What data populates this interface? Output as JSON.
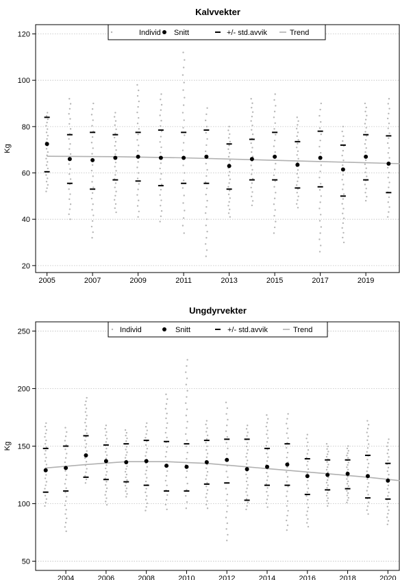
{
  "chart_data": [
    {
      "type": "scatter",
      "title": "Kalvvekter",
      "xlabel": "",
      "ylabel": "Kg",
      "xlim": [
        2004.5,
        2020.5
      ],
      "ylim": [
        17,
        124
      ],
      "xticks": [
        "2005",
        "2007",
        "2009",
        "2011",
        "2013",
        "2015",
        "2017",
        "2019"
      ],
      "yticks": [
        "20",
        "40",
        "60",
        "80",
        "100",
        "120"
      ],
      "legend": [
        "Individ",
        "Snitt",
        "+/- std.avvik",
        "Trend"
      ],
      "legend_position": "top-center",
      "grid": "horizontal dotted",
      "years": [
        2005,
        2006,
        2007,
        2008,
        2009,
        2010,
        2011,
        2012,
        2013,
        2014,
        2015,
        2016,
        2017,
        2018,
        2019,
        2020
      ],
      "mean": [
        72.5,
        66,
        65.5,
        66.5,
        67,
        66.5,
        66.5,
        67,
        63,
        66,
        67,
        63.5,
        66.5,
        61.5,
        67,
        64
      ],
      "upper": [
        84,
        76.5,
        77.5,
        76.5,
        77.5,
        78.5,
        77.5,
        78.5,
        72.5,
        74.5,
        77.5,
        73.5,
        78,
        72,
        76.5,
        76
      ],
      "lower": [
        60.5,
        55.5,
        53,
        57,
        56.5,
        54.5,
        55.5,
        55.5,
        53,
        57,
        57,
        53.5,
        54,
        50,
        57,
        51.5
      ],
      "trend": [
        [
          2005,
          67.2
        ],
        [
          2008,
          67
        ],
        [
          2011,
          66.5
        ],
        [
          2014,
          65.7
        ],
        [
          2017,
          64.9
        ],
        [
          2020.5,
          64
        ]
      ],
      "individual_range": [
        [
          52,
          86
        ],
        [
          40,
          92
        ],
        [
          32,
          90
        ],
        [
          43,
          86
        ],
        [
          41,
          98
        ],
        [
          39,
          94
        ],
        [
          34,
          112
        ],
        [
          24,
          88
        ],
        [
          41,
          80
        ],
        [
          46,
          92
        ],
        [
          34,
          94
        ],
        [
          45,
          84
        ],
        [
          26,
          90
        ],
        [
          30,
          80
        ],
        [
          48,
          90
        ],
        [
          41,
          92
        ]
      ]
    },
    {
      "type": "scatter",
      "title": "Ungdyrvekter",
      "xlabel": "",
      "ylabel": "Kg",
      "xlim": [
        2002.5,
        2020.6
      ],
      "ylim": [
        42,
        258
      ],
      "xticks": [
        "2004",
        "2006",
        "2008",
        "2010",
        "2012",
        "2014",
        "2016",
        "2018",
        "2020"
      ],
      "yticks": [
        "50",
        "100",
        "150",
        "200",
        "250"
      ],
      "legend": [
        "Individ",
        "Snitt",
        "+/- std.avvik",
        "Trend"
      ],
      "legend_position": "top-center",
      "grid": "horizontal dotted",
      "years": [
        2003,
        2004,
        2005,
        2006,
        2007,
        2008,
        2009,
        2010,
        2011,
        2012,
        2013,
        2014,
        2015,
        2016,
        2017,
        2018,
        2019,
        2020
      ],
      "mean": [
        129,
        131,
        142,
        137,
        136,
        137,
        133,
        132,
        136,
        138,
        130,
        132,
        134,
        124,
        125,
        126,
        124,
        120
      ],
      "upper": [
        148,
        150,
        159,
        151,
        152,
        155,
        154,
        152,
        155,
        156,
        156,
        148,
        152,
        139,
        138,
        138,
        142,
        135
      ],
      "lower": [
        110,
        111,
        123,
        121,
        119,
        116,
        111,
        111,
        117,
        118,
        103,
        116,
        116,
        108,
        112,
        113,
        105,
        104
      ],
      "trend": [
        [
          2003,
          131
        ],
        [
          2005,
          134
        ],
        [
          2007,
          136.5
        ],
        [
          2009,
          136.5
        ],
        [
          2011,
          135
        ],
        [
          2013,
          132
        ],
        [
          2015,
          129
        ],
        [
          2017,
          126
        ],
        [
          2019,
          123
        ],
        [
          2020.6,
          120
        ]
      ],
      "individual_range": [
        [
          98,
          170
        ],
        [
          76,
          166
        ],
        [
          118,
          192
        ],
        [
          99,
          168
        ],
        [
          106,
          164
        ],
        [
          94,
          170
        ],
        [
          95,
          195
        ],
        [
          96,
          225
        ],
        [
          96,
          172
        ],
        [
          68,
          188
        ],
        [
          95,
          168
        ],
        [
          97,
          177
        ],
        [
          77,
          178
        ],
        [
          80,
          160
        ],
        [
          98,
          152
        ],
        [
          101,
          150
        ],
        [
          91,
          172
        ],
        [
          82,
          156
        ]
      ]
    }
  ]
}
